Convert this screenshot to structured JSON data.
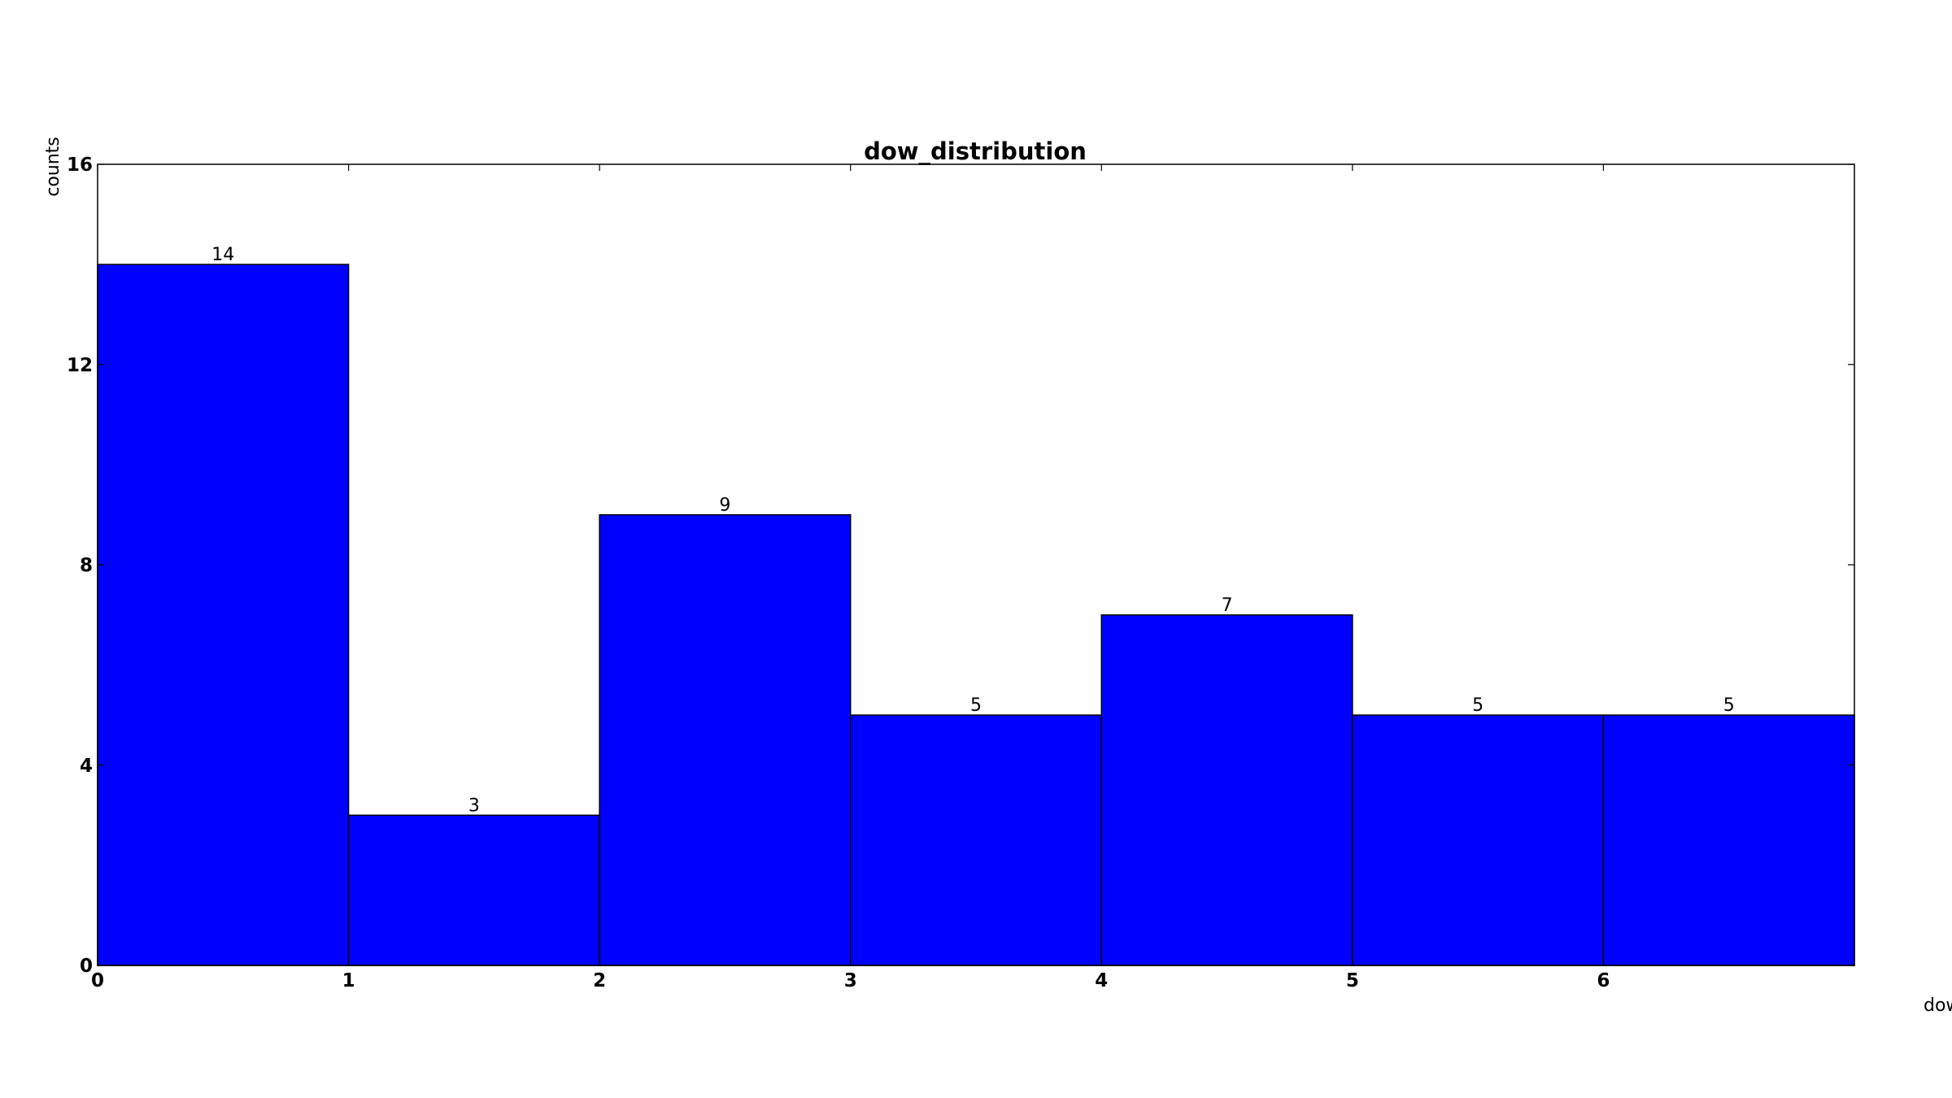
{
  "chart_data": {
    "type": "bar",
    "title": "dow_distribution",
    "xlabel": "dow",
    "ylabel": "counts",
    "bins": [
      {
        "start": 0,
        "end": 1,
        "value": 14
      },
      {
        "start": 1,
        "end": 2,
        "value": 3
      },
      {
        "start": 2,
        "end": 3,
        "value": 9
      },
      {
        "start": 3,
        "end": 4,
        "value": 5
      },
      {
        "start": 4,
        "end": 5,
        "value": 7
      },
      {
        "start": 5,
        "end": 6,
        "value": 5
      },
      {
        "start": 6,
        "end": 7,
        "value": 5
      }
    ],
    "xlim": [
      0,
      7
    ],
    "ylim": [
      0,
      16
    ],
    "xticks": [
      "0",
      "1",
      "2",
      "3",
      "4",
      "5",
      "6"
    ],
    "yticks": [
      "0",
      "4",
      "8",
      "12",
      "16"
    ],
    "bar_color": "#0000ff",
    "edge_color": "#000000",
    "grid": false,
    "legend": "none"
  }
}
